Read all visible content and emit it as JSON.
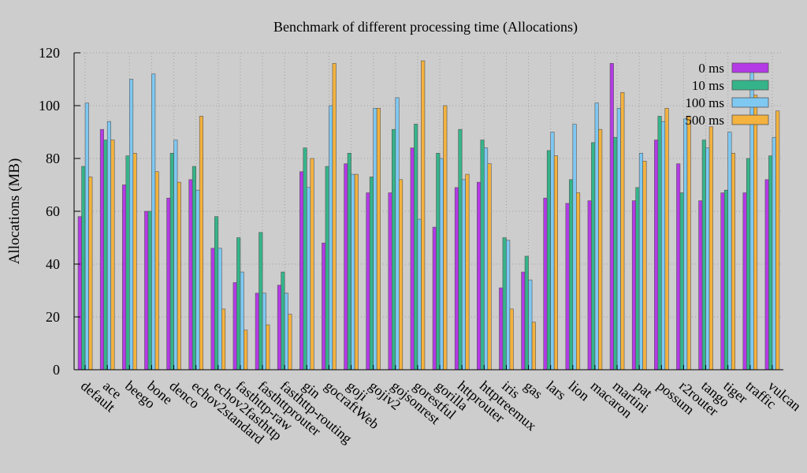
{
  "chart_data": {
    "type": "bar",
    "title": "Benchmark of different processing time (Allocations)",
    "xlabel": "",
    "ylabel": "Allocations (MB)",
    "ylim": [
      0,
      120
    ],
    "yticks": [
      0,
      20,
      40,
      60,
      80,
      100,
      120
    ],
    "grid": true,
    "legend_position": "top-right",
    "categories": [
      "default",
      "ace",
      "beego",
      "bone",
      "denco",
      "echov2standard",
      "echov2fasthttp",
      "fasthttp-raw",
      "fasthttprouter",
      "fasthttp-routing",
      "gin",
      "gocraftWeb",
      "goji",
      "gojiv2",
      "gojsonrest",
      "gorestful",
      "gorilla",
      "httprouter",
      "httptreemux",
      "iris",
      "gas",
      "lars",
      "lion",
      "macaron",
      "martini",
      "pat",
      "possum",
      "r2router",
      "tango",
      "tiger",
      "traffic",
      "vulcan"
    ],
    "series": [
      {
        "name": "0 ms",
        "color": "#b43ae6",
        "values": [
          58,
          91,
          70,
          60,
          65,
          72,
          46,
          33,
          29,
          32,
          75,
          48,
          78,
          67,
          67,
          84,
          54,
          69,
          71,
          31,
          37,
          65,
          63,
          64,
          116,
          64,
          87,
          78,
          64,
          67,
          67,
          72
        ]
      },
      {
        "name": "10 ms",
        "color": "#35b48a",
        "values": [
          77,
          87,
          81,
          60,
          82,
          77,
          58,
          50,
          52,
          37,
          84,
          77,
          82,
          73,
          91,
          93,
          82,
          91,
          87,
          50,
          43,
          83,
          72,
          86,
          88,
          69,
          96,
          67,
          87,
          68,
          80,
          81
        ]
      },
      {
        "name": "100 ms",
        "color": "#7ec8f2",
        "values": [
          101,
          94,
          110,
          112,
          87,
          68,
          46,
          37,
          29,
          29,
          69,
          100,
          74,
          99,
          103,
          57,
          80,
          72,
          84,
          49,
          34,
          90,
          93,
          101,
          99,
          82,
          94,
          95,
          84,
          90,
          116,
          88
        ]
      },
      {
        "name": "500 ms",
        "color": "#f4b23e",
        "values": [
          73,
          87,
          82,
          75,
          71,
          96,
          23,
          15,
          17,
          21,
          80,
          116,
          74,
          99,
          72,
          117,
          100,
          74,
          78,
          23,
          18,
          81,
          67,
          91,
          105,
          79,
          99,
          96,
          92,
          82,
          104,
          98
        ]
      }
    ]
  }
}
